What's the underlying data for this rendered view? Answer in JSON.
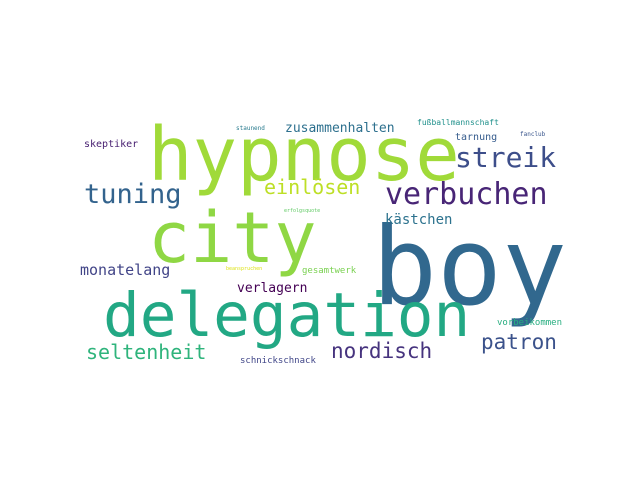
{
  "words": [
    {
      "text": "boy",
      "color": "#31688e"
    },
    {
      "text": "hypnose",
      "color": "#a0da39"
    },
    {
      "text": "city",
      "color": "#8fd744"
    },
    {
      "text": "delegation",
      "color": "#22a884"
    },
    {
      "text": "verbuchen",
      "color": "#482576"
    },
    {
      "text": "streik",
      "color": "#3d4e8a"
    },
    {
      "text": "tuning",
      "color": "#33638d"
    },
    {
      "text": "einlösen",
      "color": "#bddf26"
    },
    {
      "text": "nordisch",
      "color": "#46337e"
    },
    {
      "text": "seltenheit",
      "color": "#2fb47c"
    },
    {
      "text": "patron",
      "color": "#3b528b"
    },
    {
      "text": "monatelang",
      "color": "#414487"
    },
    {
      "text": "kästchen",
      "color": "#2c728e"
    },
    {
      "text": "zusammenhalten",
      "color": "#2d708e"
    },
    {
      "text": "verlagern",
      "color": "#440154"
    },
    {
      "text": "skeptiker",
      "color": "#482071"
    },
    {
      "text": "tarnung",
      "color": "#365c8d"
    },
    {
      "text": "fußballmannschaft",
      "color": "#21918c"
    },
    {
      "text": "gesamtwerk",
      "color": "#7ad151"
    },
    {
      "text": "vorbeikommen",
      "color": "#28ae80"
    },
    {
      "text": "schnickschnack",
      "color": "#404688"
    },
    {
      "text": "staunend",
      "color": "#297b8e"
    },
    {
      "text": "fanclub",
      "color": "#39558c"
    },
    {
      "text": "erfolgsquote",
      "color": "#5ec962"
    },
    {
      "text": "beanspruchen",
      "color": "#dde318"
    }
  ]
}
